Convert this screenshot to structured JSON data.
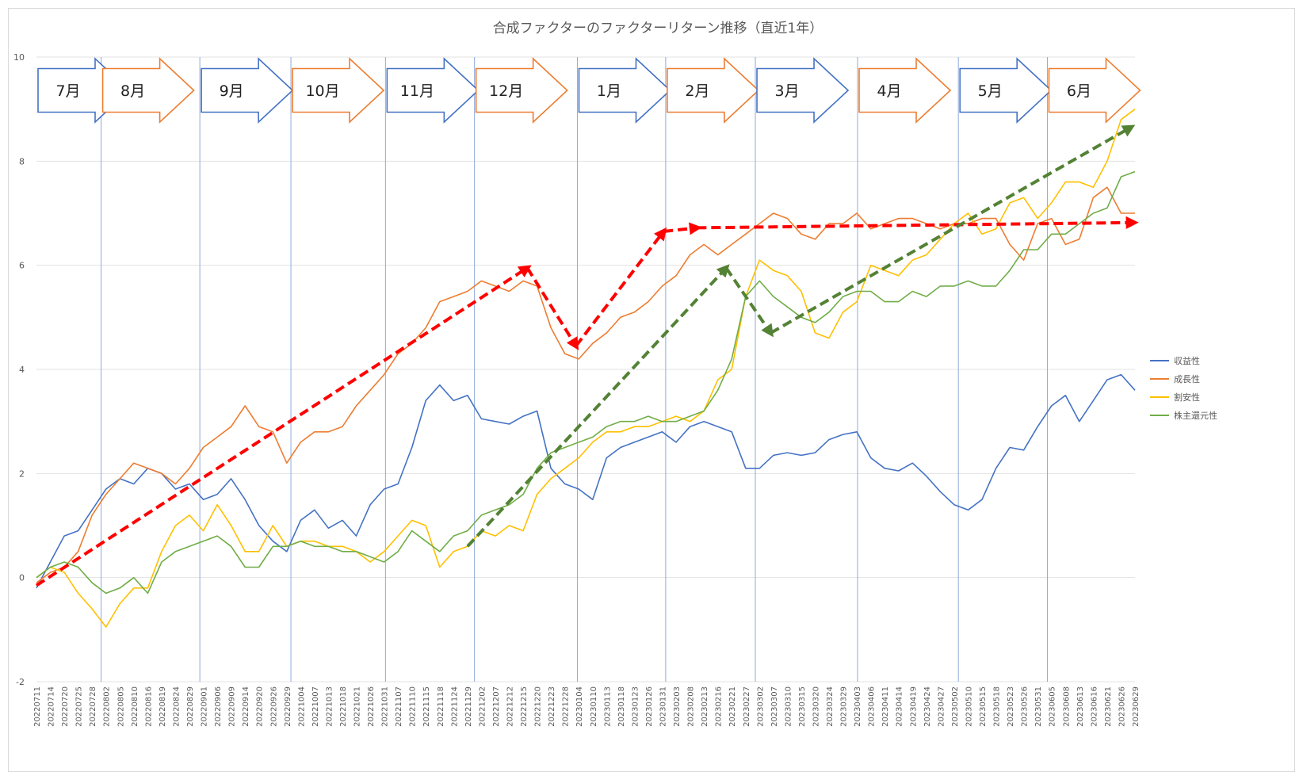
{
  "chart_data": {
    "type": "line",
    "title": "合成ファクターのファクターリターン推移（直近1年）",
    "xlabel": "",
    "ylabel": "",
    "ylim": [
      -2,
      10
    ],
    "yticks": [
      -2,
      0,
      2,
      4,
      6,
      8,
      10
    ],
    "grid": true,
    "legend_position": "right",
    "x_tick_labels": [
      "20220711",
      "20220714",
      "20220720",
      "20220725",
      "20220728",
      "20220802",
      "20220805",
      "20220810",
      "20220816",
      "20220819",
      "20220824",
      "20220829",
      "20220901",
      "20220906",
      "20220909",
      "20220914",
      "20220920",
      "20220926",
      "20220929",
      "20221004",
      "20221007",
      "20221013",
      "20221018",
      "20221021",
      "20221026",
      "20221031",
      "20221107",
      "20221110",
      "20221115",
      "20221118",
      "20221124",
      "20221129",
      "20221202",
      "20221207",
      "20221212",
      "20221215",
      "20221220",
      "20221223",
      "20221228",
      "20230104",
      "20230110",
      "20230113",
      "20230118",
      "20230123",
      "20230126",
      "20230131",
      "20230203",
      "20230208",
      "20230213",
      "20230216",
      "20230221",
      "20230227",
      "20230302",
      "20230307",
      "20230310",
      "20230315",
      "20230320",
      "20230324",
      "20230329",
      "20230403",
      "20230406",
      "20230411",
      "20230414",
      "20230419",
      "20230424",
      "20230427",
      "20230502",
      "20230510",
      "20230515",
      "20230518",
      "20230523",
      "20230526",
      "20230531",
      "20230605",
      "20230608",
      "20230613",
      "20230616",
      "20230621",
      "20230626",
      "20230629"
    ],
    "months": [
      {
        "label": "7月",
        "start": 0,
        "color": "#4472c4"
      },
      {
        "label": "8月",
        "start": 4.65,
        "color": "#ed7d31"
      },
      {
        "label": "9月",
        "start": 11.75,
        "color": "#4472c4"
      },
      {
        "label": "10月",
        "start": 18.3,
        "color": "#ed7d31"
      },
      {
        "label": "11月",
        "start": 25.1,
        "color": "#4472c4"
      },
      {
        "label": "12月",
        "start": 31.5,
        "color": "#ed7d31"
      },
      {
        "label": "1月",
        "start": 38.9,
        "color": "#4472c4"
      },
      {
        "label": "2月",
        "start": 45.25,
        "color": "#ed7d31"
      },
      {
        "label": "3月",
        "start": 51.7,
        "color": "#4472c4"
      },
      {
        "label": "4月",
        "start": 59.05,
        "color": "#ed7d31"
      },
      {
        "label": "5月",
        "start": 66.3,
        "color": "#4472c4"
      },
      {
        "label": "6月",
        "start": 72.7,
        "color": "#ed7d31"
      }
    ],
    "series": [
      {
        "name": "収益性",
        "color": "#4472c4",
        "values": [
          -0.2,
          0.3,
          0.8,
          0.9,
          1.3,
          1.7,
          1.9,
          1.8,
          2.1,
          2.0,
          1.7,
          1.8,
          1.5,
          1.6,
          1.9,
          1.5,
          1.0,
          0.7,
          0.5,
          1.1,
          1.3,
          0.95,
          1.1,
          0.8,
          1.4,
          1.7,
          1.8,
          2.5,
          3.4,
          3.7,
          3.4,
          3.5,
          3.05,
          3.0,
          2.95,
          3.1,
          3.2,
          2.1,
          1.8,
          1.7,
          1.5,
          2.3,
          2.5,
          2.6,
          2.7,
          2.8,
          2.6,
          2.9,
          3.0,
          2.9,
          2.8,
          2.1,
          2.1,
          2.35,
          2.4,
          2.35,
          2.4,
          2.65,
          2.75,
          2.8,
          2.3,
          2.1,
          2.05,
          2.2,
          1.95,
          1.65,
          1.4,
          1.3,
          1.5,
          2.1,
          2.5,
          2.45,
          2.9,
          3.3,
          3.5,
          3.0,
          3.4,
          3.8,
          3.9,
          3.6
        ]
      },
      {
        "name": "成長性",
        "color": "#ed7d31",
        "values": [
          -0.1,
          0.1,
          0.2,
          0.5,
          1.2,
          1.6,
          1.9,
          2.2,
          2.1,
          2.0,
          1.8,
          2.1,
          2.5,
          2.7,
          2.9,
          3.3,
          2.9,
          2.8,
          2.2,
          2.6,
          2.8,
          2.8,
          2.9,
          3.3,
          3.6,
          3.9,
          4.3,
          4.5,
          4.8,
          5.3,
          5.4,
          5.5,
          5.7,
          5.6,
          5.5,
          5.7,
          5.6,
          4.8,
          4.3,
          4.2,
          4.5,
          4.7,
          5.0,
          5.1,
          5.3,
          5.6,
          5.8,
          6.2,
          6.4,
          6.2,
          6.4,
          6.6,
          6.8,
          7.0,
          6.9,
          6.6,
          6.5,
          6.8,
          6.8,
          7.0,
          6.7,
          6.8,
          6.9,
          6.9,
          6.8,
          6.7,
          6.8,
          6.8,
          6.9,
          6.9,
          6.4,
          6.1,
          6.8,
          6.9,
          6.4,
          6.5,
          7.3,
          7.5,
          7.0,
          7.0
        ]
      },
      {
        "name": "割安性",
        "color": "#ffc000",
        "values": [
          0.0,
          0.2,
          0.1,
          -0.3,
          -0.6,
          -0.95,
          -0.5,
          -0.2,
          -0.2,
          0.5,
          1.0,
          1.2,
          0.9,
          1.4,
          1.0,
          0.5,
          0.5,
          1.0,
          0.6,
          0.7,
          0.7,
          0.6,
          0.6,
          0.5,
          0.3,
          0.5,
          0.8,
          1.1,
          1.0,
          0.2,
          0.5,
          0.6,
          0.9,
          0.8,
          1.0,
          0.9,
          1.6,
          1.9,
          2.1,
          2.3,
          2.6,
          2.8,
          2.8,
          2.9,
          2.9,
          3.0,
          3.1,
          3.0,
          3.2,
          3.8,
          4.0,
          5.4,
          6.1,
          5.9,
          5.8,
          5.5,
          4.7,
          4.6,
          5.1,
          5.3,
          6.0,
          5.9,
          5.8,
          6.1,
          6.2,
          6.5,
          6.8,
          7.0,
          6.6,
          6.7,
          7.2,
          7.3,
          6.9,
          7.2,
          7.6,
          7.6,
          7.5,
          8.0,
          8.8,
          9.0
        ]
      },
      {
        "name": "株主還元性",
        "color": "#70ad47",
        "values": [
          0.0,
          0.2,
          0.3,
          0.2,
          -0.1,
          -0.3,
          -0.2,
          0.0,
          -0.3,
          0.3,
          0.5,
          0.6,
          0.7,
          0.8,
          0.6,
          0.2,
          0.2,
          0.6,
          0.6,
          0.7,
          0.6,
          0.6,
          0.5,
          0.5,
          0.4,
          0.3,
          0.5,
          0.9,
          0.7,
          0.5,
          0.8,
          0.9,
          1.2,
          1.3,
          1.4,
          1.6,
          2.1,
          2.4,
          2.5,
          2.6,
          2.7,
          2.9,
          3.0,
          3.0,
          3.1,
          3.0,
          3.0,
          3.1,
          3.2,
          3.6,
          4.2,
          5.4,
          5.7,
          5.4,
          5.2,
          5.0,
          4.9,
          5.1,
          5.4,
          5.5,
          5.5,
          5.3,
          5.3,
          5.5,
          5.4,
          5.6,
          5.6,
          5.7,
          5.6,
          5.6,
          5.9,
          6.3,
          6.3,
          6.6,
          6.6,
          6.8,
          7.0,
          7.1,
          7.7,
          7.8
        ]
      }
    ],
    "annotations": [
      {
        "type": "trend-arrow",
        "color": "#ff0000",
        "points": [
          [
            0,
            -0.15
          ],
          [
            35.3,
            5.95
          ],
          [
            38.8,
            4.45
          ],
          [
            45.1,
            6.65
          ],
          [
            47.5,
            6.72
          ],
          [
            78.9,
            6.82
          ]
        ]
      },
      {
        "type": "trend-arrow",
        "color": "#548235",
        "points": [
          [
            31.0,
            0.6
          ],
          [
            49.6,
            5.95
          ],
          [
            52.8,
            4.7
          ],
          [
            78.7,
            8.65
          ]
        ]
      }
    ]
  }
}
